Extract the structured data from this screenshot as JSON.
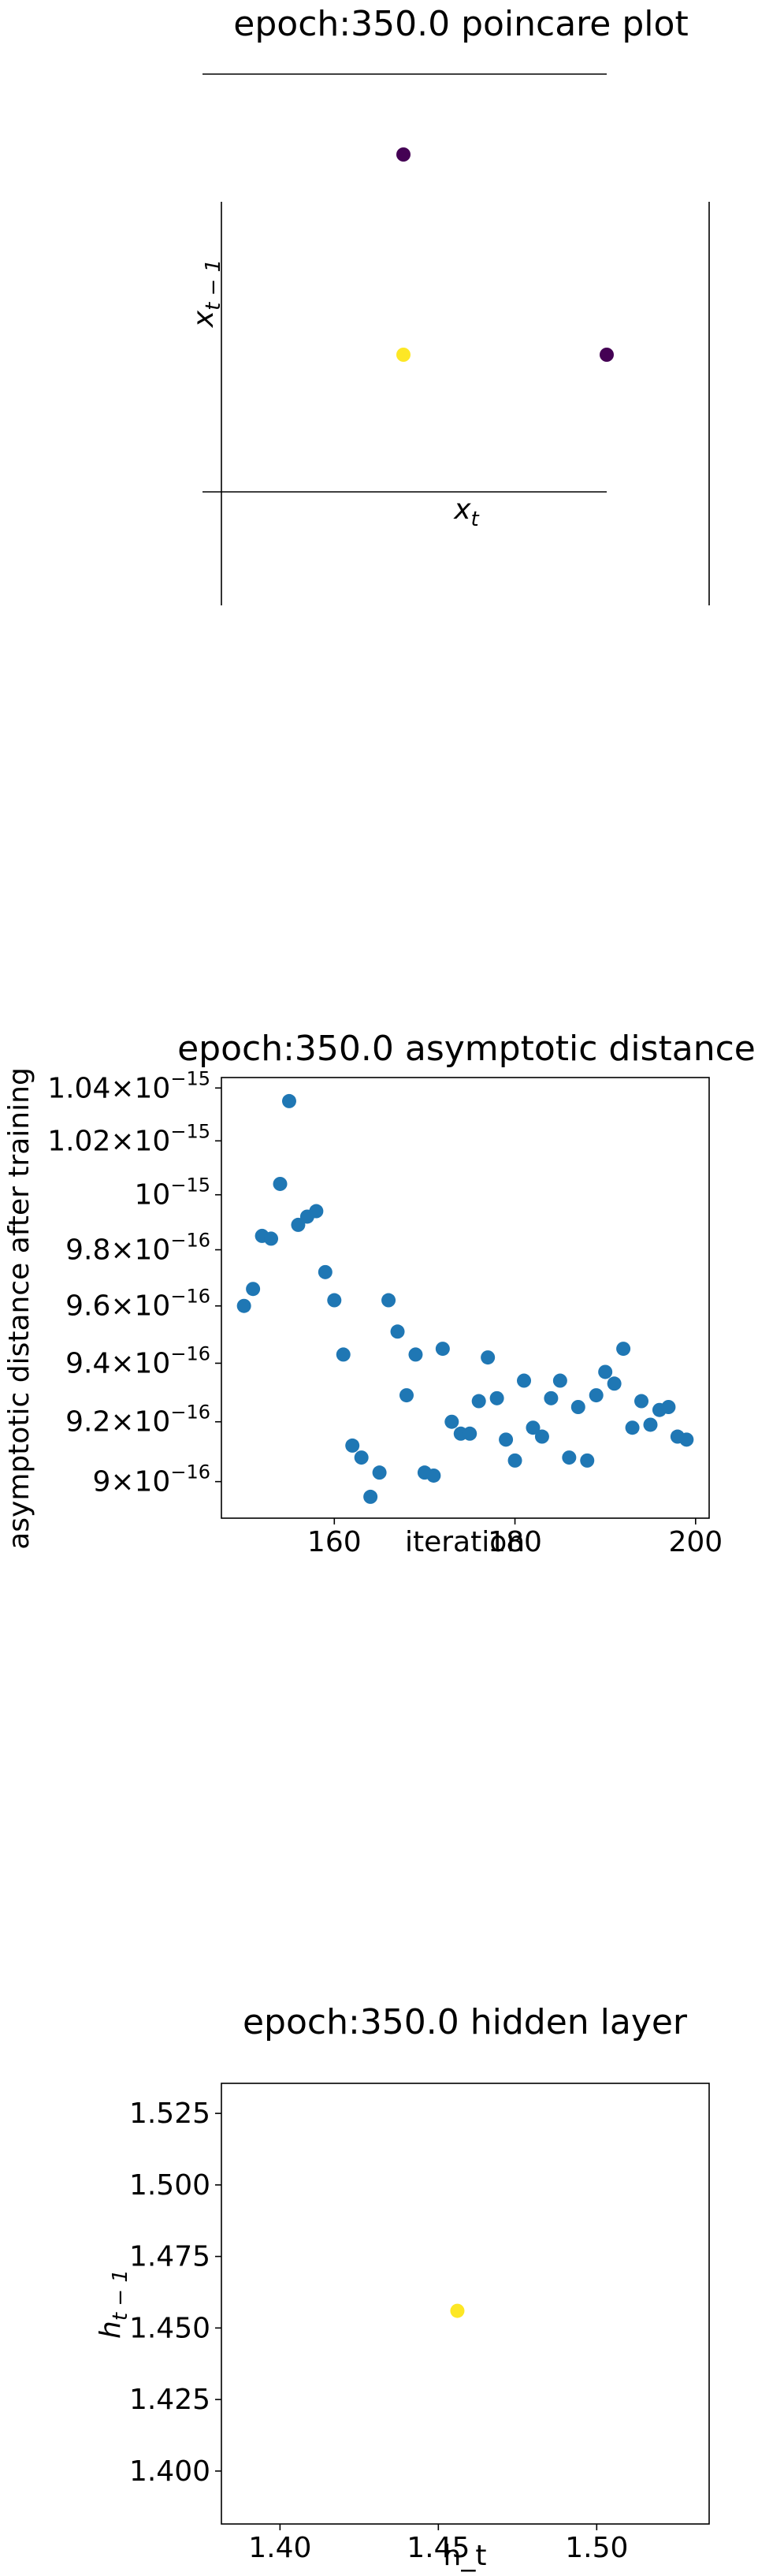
{
  "chart_data": [
    {
      "type": "scatter",
      "title": "epoch:350.0 poincare plot",
      "xlabel": "x_t",
      "ylabel": "x_{t-1}",
      "points": [
        {
          "x": 0,
          "y": 1,
          "color": "#440154"
        },
        {
          "x": 1,
          "y": 0,
          "color": "#440154"
        },
        {
          "x": 0,
          "y": 0,
          "color": "#fde725"
        }
      ],
      "xlim": [
        -1,
        1.5
      ],
      "ylim": [
        -0.5,
        2
      ],
      "grid": false
    },
    {
      "type": "scatter",
      "title": "epoch:350.0 asymptotic distance",
      "xlabel": "iteration",
      "ylabel": "asymptotic distance after training",
      "yscale": "log",
      "series_color": "#1f77b4",
      "x": [
        150,
        151,
        152,
        153,
        154,
        155,
        156,
        157,
        158,
        159,
        160,
        161,
        162,
        163,
        164,
        165,
        166,
        167,
        168,
        169,
        170,
        171,
        172,
        173,
        174,
        175,
        176,
        177,
        178,
        179,
        180,
        181,
        182,
        183,
        184,
        185,
        186,
        187,
        188,
        189,
        190,
        191,
        192,
        193,
        194,
        195,
        196,
        197,
        198,
        199
      ],
      "values": [
        9.6e-16,
        9.66e-16,
        9.85e-16,
        9.84e-16,
        1.004e-15,
        1.035e-15,
        9.89e-16,
        9.92e-16,
        9.94e-16,
        9.72e-16,
        9.62e-16,
        9.43e-16,
        9.12e-16,
        9.08e-16,
        8.95e-16,
        9.03e-16,
        9.62e-16,
        9.51e-16,
        9.29e-16,
        9.43e-16,
        9.03e-16,
        9.02e-16,
        9.45e-16,
        9.2e-16,
        9.16e-16,
        9.16e-16,
        9.27e-16,
        9.42e-16,
        9.28e-16,
        9.14e-16,
        9.07e-16,
        9.34e-16,
        9.18e-16,
        9.15e-16,
        9.28e-16,
        9.34e-16,
        9.08e-16,
        9.25e-16,
        9.07e-16,
        9.29e-16,
        9.37e-16,
        9.33e-16,
        9.45e-16,
        9.18e-16,
        9.27e-16,
        9.19e-16,
        9.24e-16,
        9.25e-16,
        9.15e-16,
        9.14e-16
      ],
      "xticks": [
        160,
        180,
        200
      ],
      "xtick_labels": [
        "160",
        "180",
        "200"
      ],
      "yticks": [
        9e-16,
        9.2e-16,
        9.4e-16,
        9.6e-16,
        9.8e-16,
        1e-15,
        1.02e-15,
        1.04e-15
      ],
      "ytick_mantissas": [
        "9",
        "9.2",
        "9.4",
        "9.6",
        "9.8",
        "",
        "1.02",
        "1.04"
      ],
      "ytick_exponents": [
        "−16",
        "−16",
        "−16",
        "−16",
        "−16",
        "−15",
        "−15",
        "−15"
      ],
      "xlim": [
        147.5,
        201.5
      ],
      "ylim": [
        8.88e-16,
        1.044e-15
      ],
      "grid": false
    },
    {
      "type": "scatter",
      "title": "epoch:350.0 hidden layer",
      "xlabel": "h_t",
      "ylabel": "h_{t-1}",
      "points": [
        {
          "x": 1.456,
          "y": 1.456,
          "color": "#fde725"
        }
      ],
      "xticks": [
        1.4,
        1.45,
        1.5
      ],
      "xtick_labels": [
        "1.40",
        "1.45",
        "1.50"
      ],
      "yticks": [
        1.4,
        1.425,
        1.45,
        1.475,
        1.5,
        1.525
      ],
      "ytick_labels": [
        "1.400",
        "1.425",
        "1.450",
        "1.475",
        "1.500",
        "1.525"
      ],
      "xlim": [
        1.3815,
        1.5355
      ],
      "ylim": [
        1.3815,
        1.5355
      ],
      "grid": false
    }
  ]
}
